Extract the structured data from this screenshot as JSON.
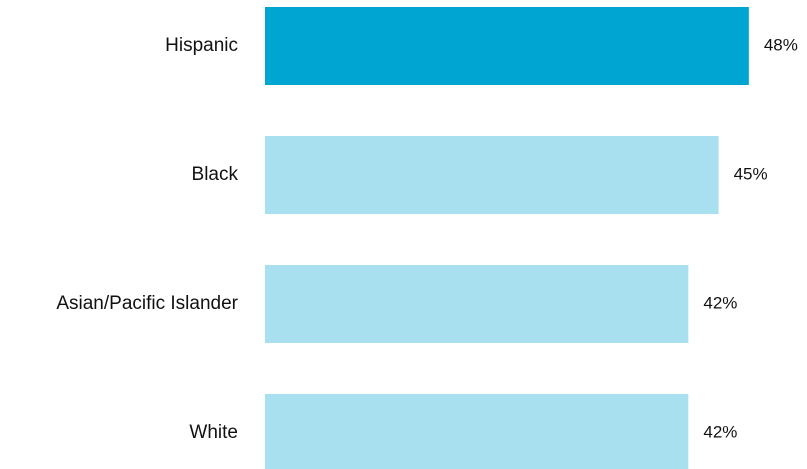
{
  "chart_data": {
    "type": "bar",
    "orientation": "horizontal",
    "categories": [
      "Hispanic",
      "Black",
      "Asian/Pacific Islander",
      "White"
    ],
    "values": [
      48,
      45,
      42,
      42
    ],
    "value_labels": [
      "48%",
      "45%",
      "42%",
      "42%"
    ],
    "colors": [
      "#00a5d2",
      "#a9e0ef",
      "#a9e0ef",
      "#a9e0ef"
    ]
  }
}
